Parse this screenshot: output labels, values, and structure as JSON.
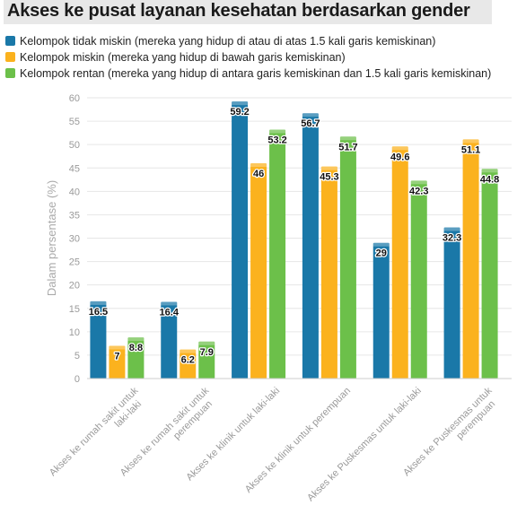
{
  "chart_data": {
    "type": "bar",
    "title": "Akses ke pusat layanan kesehatan berdasarkan gender",
    "ylabel": "Dalam persentase (%)",
    "xlabel": "",
    "ylim": [
      0,
      60
    ],
    "yticks": [
      "0",
      "5",
      "10",
      "15",
      "20",
      "25",
      "30",
      "35",
      "40",
      "45",
      "50",
      "55",
      "60"
    ],
    "grid": true,
    "legend_position": "top",
    "categories": [
      [
        "Akses ke rumah sakit untuk",
        "laki-laki"
      ],
      [
        "Akses ke rumah sakit untuk",
        "perempuan"
      ],
      [
        "Akses ke klinik untuk laki-laki"
      ],
      [
        "Akses ke klinik untuk perempuan"
      ],
      [
        "Akses ke Puskesmas untuk laki-laki"
      ],
      [
        "Akses ke Puskesmas untuk",
        "perempuan"
      ]
    ],
    "series": [
      {
        "name": "Kelompok tidak miskin (mereka yang hidup di atau di atas 1.5 kali garis kemiskinan)",
        "color": "#1a78a8",
        "values": [
          16.5,
          16.4,
          59.2,
          56.7,
          29,
          32.3
        ],
        "labels": [
          "16.5",
          "16.4",
          "59.2",
          "56.7",
          "29",
          "32.3"
        ]
      },
      {
        "name": "Kelompok miskin (mereka yang hidup di bawah garis kemiskinan)",
        "color": "#fbb21e",
        "values": [
          7,
          6.2,
          46,
          45.3,
          49.6,
          51.1
        ],
        "labels": [
          "7",
          "6.2",
          "46",
          "45.3",
          "49.6",
          "51.1"
        ]
      },
      {
        "name": "Kelompok rentan (mereka yang hidup di antara garis kemiskinan dan 1.5 kali garis kemiskinan)",
        "color": "#6cc04a",
        "values": [
          8.8,
          7.9,
          53.2,
          51.7,
          42.3,
          44.8
        ],
        "labels": [
          "8.8",
          "7.9",
          "53.2",
          "51.7",
          "42.3",
          "44.8"
        ]
      }
    ]
  }
}
